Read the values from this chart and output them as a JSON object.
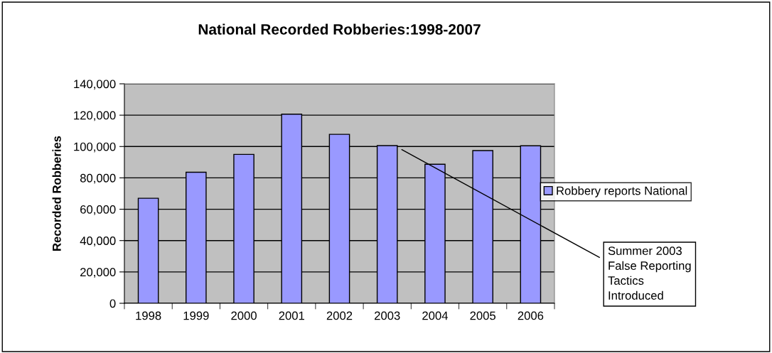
{
  "chart_data": {
    "type": "bar",
    "title": "National Recorded Robberies:1998-2007",
    "ylabel": "Recorded Robberies",
    "categories": [
      "1998",
      "1999",
      "2000",
      "2001",
      "2002",
      "2003",
      "2004",
      "2005",
      "2006"
    ],
    "series": [
      {
        "name": "Robbery reports National",
        "color": "#9999ff",
        "values": [
          67000,
          83600,
          95000,
          120600,
          107800,
          100600,
          88700,
          97400,
          100500
        ]
      }
    ],
    "ylim": [
      0,
      140000
    ],
    "yticks": [
      {
        "value": 0,
        "label": "0"
      },
      {
        "value": 20000,
        "label": "20,000"
      },
      {
        "value": 40000,
        "label": "40,000"
      },
      {
        "value": 60000,
        "label": "60,000"
      },
      {
        "value": 80000,
        "label": "80,000"
      },
      {
        "value": 100000,
        "label": "100,000"
      },
      {
        "value": 120000,
        "label": "120,000"
      },
      {
        "value": 140000,
        "label": "140,000"
      }
    ],
    "grid": "y",
    "legend": "right",
    "annotations": [
      "Summer 2003\nFalse Reporting\nTactics\nIntroduced"
    ]
  }
}
